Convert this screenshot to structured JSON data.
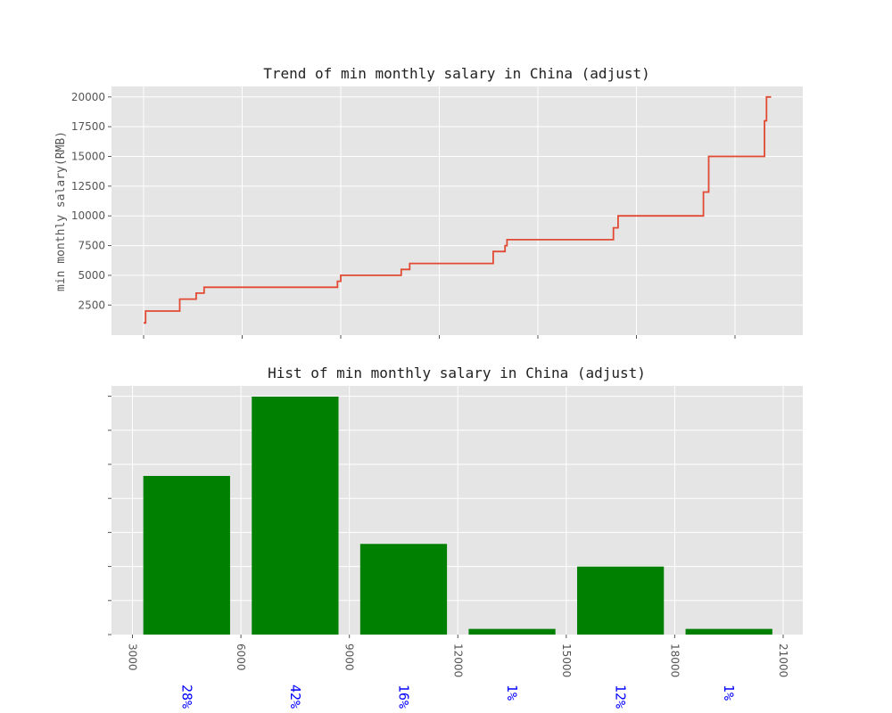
{
  "chart_data": [
    {
      "type": "line",
      "title": "Trend of min monthly salary in China (adjust)",
      "xlabel": "",
      "ylabel": "min monthly salary(RMB)",
      "ylim": [
        0,
        21000
      ],
      "yticks": [
        "2500",
        "5000",
        "7500",
        "10000",
        "12500",
        "15000",
        "17500",
        "20000"
      ],
      "xticklabels": "hidden",
      "grid": true,
      "line_color": "#e24a33",
      "series": [
        {
          "x": [
            0,
            3,
            3,
            22,
            22,
            55,
            55,
            80,
            80,
            92,
            92,
            295,
            295,
            300,
            300,
            392,
            392,
            405,
            405,
            532,
            532,
            550,
            550,
            553,
            553,
            715,
            715,
            722,
            722,
            852,
            852,
            860,
            860,
            862,
            862,
            945,
            945,
            948,
            948,
            955
          ],
          "y": [
            1000,
            1000,
            2000,
            2000,
            2000,
            2000,
            3000,
            3000,
            3500,
            3500,
            4000,
            4000,
            4500,
            4500,
            5000,
            5000,
            5500,
            5500,
            6000,
            6000,
            7000,
            7000,
            7500,
            7500,
            8000,
            8000,
            9000,
            9000,
            10000,
            10000,
            12000,
            12000,
            15000,
            15000,
            15000,
            15000,
            18000,
            18000,
            20000,
            20000
          ]
        }
      ]
    },
    {
      "type": "bar",
      "title": "Hist of min monthly salary in China (adjust)",
      "xlabel": "",
      "ylabel": "",
      "xlim": [
        2500,
        21500
      ],
      "xticks": [
        "3000",
        "6000",
        "9000",
        "12000",
        "15000",
        "18000",
        "21000"
      ],
      "bar_color": "#008000",
      "bins": [
        [
          3000,
          6000
        ],
        [
          6000,
          9000
        ],
        [
          9000,
          12000
        ],
        [
          12000,
          15000
        ],
        [
          15000,
          18000
        ],
        [
          18000,
          21000
        ]
      ],
      "values": [
        28,
        42,
        16,
        1,
        12,
        1
      ],
      "labels": [
        "28%",
        "42%",
        "16%",
        "1%",
        "12%",
        "1%"
      ],
      "label_color": "#0000ff"
    }
  ]
}
